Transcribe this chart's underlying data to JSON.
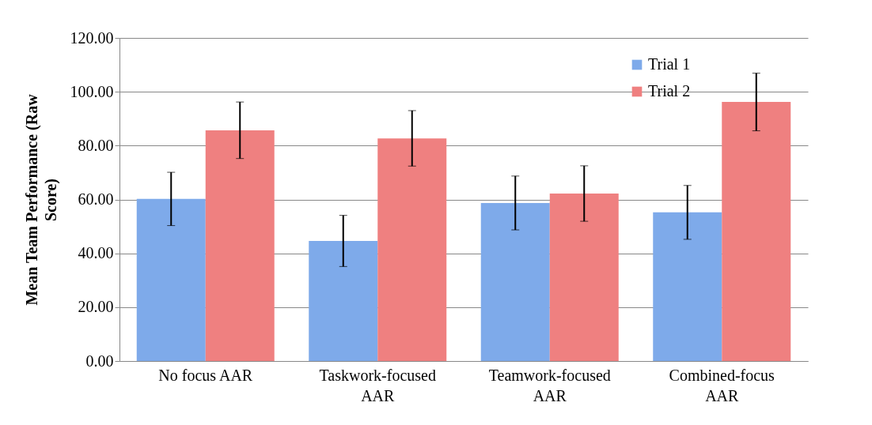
{
  "chart_data": {
    "type": "bar",
    "ylabel": "Mean Team Performance (Raw Score)",
    "categories": [
      "No focus AAR",
      "Taskwork-focused AAR",
      "Teamwork-focused AAR",
      "Combined-focus AAR"
    ],
    "series": [
      {
        "name": "Trial 1",
        "color": "#7eaaea",
        "values": [
          60.2,
          44.6,
          58.7,
          55.2
        ],
        "errors": [
          9.9,
          9.5,
          10,
          10
        ]
      },
      {
        "name": "Trial 2",
        "color": "#ef8080",
        "values": [
          85.7,
          82.7,
          62.2,
          96.2
        ],
        "errors": [
          10.5,
          10.3,
          10.3,
          10.7
        ]
      }
    ],
    "ylim": [
      0,
      120
    ],
    "yticks": [
      {
        "value": 0,
        "label": "0.00"
      },
      {
        "value": 20,
        "label": "20.00"
      },
      {
        "value": 40,
        "label": "40.00"
      },
      {
        "value": 60,
        "label": "60.00"
      },
      {
        "value": 80,
        "label": "80.00"
      },
      {
        "value": 100,
        "label": "100.00"
      },
      {
        "value": 120,
        "label": "120.00"
      }
    ],
    "grid": "y",
    "legend": "top right"
  }
}
